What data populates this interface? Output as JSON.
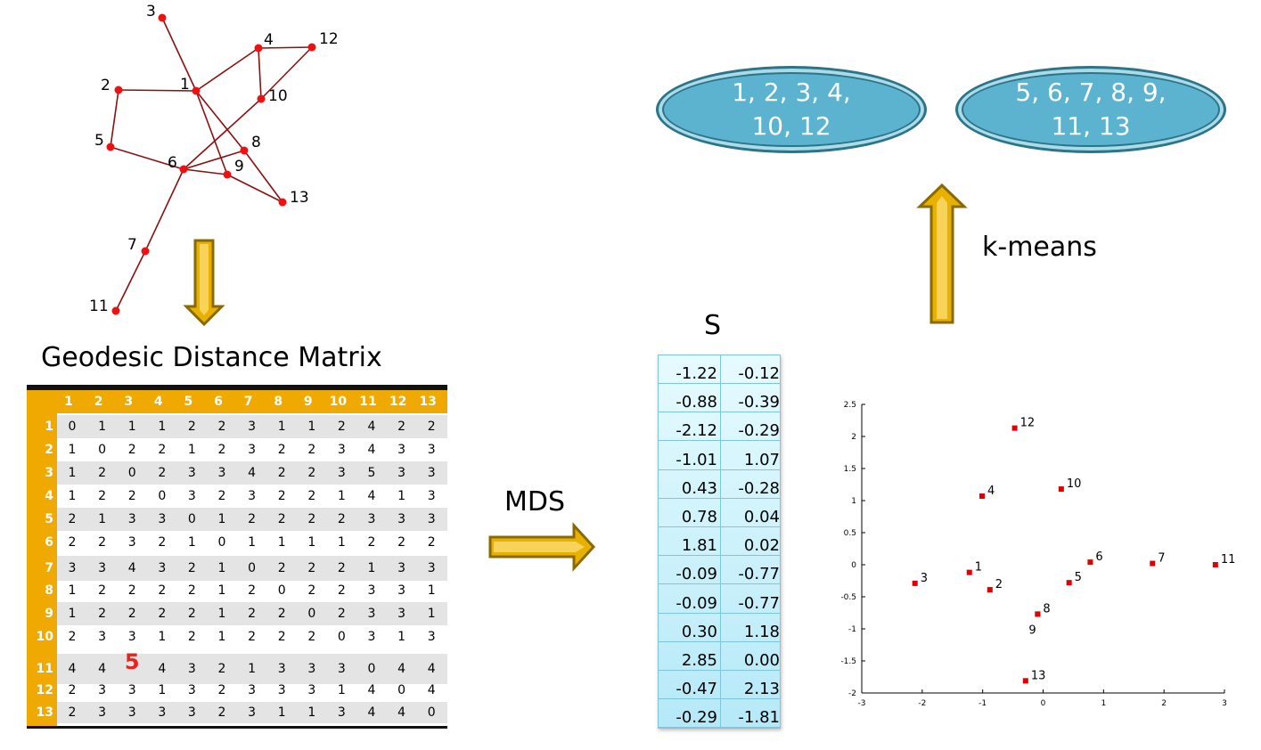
{
  "graph": {
    "nodes": [
      {
        "id": "1",
        "label": "1"
      },
      {
        "id": "2",
        "label": "2"
      },
      {
        "id": "3",
        "label": "3"
      },
      {
        "id": "4",
        "label": "4"
      },
      {
        "id": "5",
        "label": "5"
      },
      {
        "id": "6",
        "label": "6"
      },
      {
        "id": "7",
        "label": "7"
      },
      {
        "id": "8",
        "label": "8"
      },
      {
        "id": "9",
        "label": "9"
      },
      {
        "id": "10",
        "label": "10"
      },
      {
        "id": "11",
        "label": "11"
      },
      {
        "id": "12",
        "label": "12"
      },
      {
        "id": "13",
        "label": "13"
      }
    ],
    "edges": [
      [
        "3",
        "1"
      ],
      [
        "1",
        "2"
      ],
      [
        "1",
        "4"
      ],
      [
        "1",
        "9"
      ],
      [
        "1",
        "8"
      ],
      [
        "4",
        "12"
      ],
      [
        "4",
        "10"
      ],
      [
        "12",
        "10"
      ],
      [
        "2",
        "5"
      ],
      [
        "5",
        "6"
      ],
      [
        "6",
        "10"
      ],
      [
        "6",
        "8"
      ],
      [
        "6",
        "9"
      ],
      [
        "9",
        "13"
      ],
      [
        "8",
        "13"
      ],
      [
        "6",
        "7"
      ],
      [
        "7",
        "11"
      ]
    ],
    "edge_color": "#8b1010",
    "node_color": "#ee1111"
  },
  "matrix": {
    "title": "Geodesic Distance Matrix",
    "headers": [
      "1",
      "2",
      "3",
      "4",
      "5",
      "6",
      "7",
      "8",
      "9",
      "10",
      "11",
      "12",
      "13"
    ],
    "rows": [
      [
        0,
        1,
        1,
        1,
        2,
        2,
        3,
        1,
        1,
        2,
        4,
        2,
        2
      ],
      [
        1,
        0,
        2,
        2,
        1,
        2,
        3,
        2,
        2,
        3,
        4,
        3,
        3
      ],
      [
        1,
        2,
        0,
        2,
        3,
        3,
        4,
        2,
        2,
        3,
        5,
        3,
        3
      ],
      [
        1,
        2,
        2,
        0,
        3,
        2,
        3,
        2,
        2,
        1,
        4,
        1,
        3
      ],
      [
        2,
        1,
        3,
        3,
        0,
        1,
        2,
        2,
        2,
        2,
        3,
        3,
        3
      ],
      [
        2,
        2,
        3,
        2,
        1,
        0,
        1,
        1,
        1,
        1,
        2,
        2,
        2
      ],
      [
        3,
        3,
        4,
        3,
        2,
        1,
        0,
        2,
        2,
        2,
        1,
        3,
        3
      ],
      [
        1,
        2,
        2,
        2,
        2,
        1,
        2,
        0,
        2,
        2,
        3,
        3,
        1
      ],
      [
        1,
        2,
        2,
        2,
        2,
        1,
        2,
        2,
        0,
        2,
        3,
        3,
        1
      ],
      [
        2,
        3,
        3,
        1,
        2,
        1,
        2,
        2,
        2,
        0,
        3,
        1,
        3
      ],
      [
        4,
        4,
        5,
        4,
        3,
        2,
        1,
        3,
        3,
        3,
        0,
        4,
        4
      ],
      [
        2,
        3,
        3,
        1,
        3,
        2,
        3,
        3,
        3,
        1,
        4,
        0,
        4
      ],
      [
        2,
        3,
        3,
        3,
        3,
        2,
        3,
        1,
        1,
        3,
        4,
        4,
        0
      ]
    ],
    "highlight": {
      "row": 10,
      "col": 2
    },
    "header_color": "#f0a900",
    "highlight_color": "#e8231d"
  },
  "mds": {
    "label": "MDS"
  },
  "kmeans": {
    "label": "k-means"
  },
  "s_matrix": {
    "title": "S",
    "rows": [
      [
        "-1.22",
        "-0.12"
      ],
      [
        "-0.88",
        "-0.39"
      ],
      [
        "-2.12",
        "-0.29"
      ],
      [
        "-1.01",
        "1.07"
      ],
      [
        "0.43",
        "-0.28"
      ],
      [
        "0.78",
        "0.04"
      ],
      [
        "1.81",
        "0.02"
      ],
      [
        "-0.09",
        "-0.77"
      ],
      [
        "-0.09",
        "-0.77"
      ],
      [
        "0.30",
        "1.18"
      ],
      [
        "2.85",
        "0.00"
      ],
      [
        "-0.47",
        "2.13"
      ],
      [
        "-0.29",
        "-1.81"
      ]
    ]
  },
  "clusters": [
    {
      "line1": "1, 2, 3, 4,",
      "line2": "10, 12"
    },
    {
      "line1": "5, 6, 7, 8, 9,",
      "line2": "11, 13"
    }
  ],
  "chart_data": {
    "type": "scatter",
    "xlim": [
      -3,
      3
    ],
    "ylim": [
      -2,
      2.5
    ],
    "xticks": [
      "-3",
      "-2",
      "-1",
      "0",
      "1",
      "2",
      "3"
    ],
    "yticks": [
      "2.5",
      "2",
      "1.5",
      "1",
      "0.5",
      "0",
      "-0.5",
      "-1",
      "-1.5",
      "-2"
    ],
    "marker_color": "#e00000",
    "points": [
      {
        "label": "1",
        "x": -1.22,
        "y": -0.12
      },
      {
        "label": "2",
        "x": -0.88,
        "y": -0.39
      },
      {
        "label": "3",
        "x": -2.12,
        "y": -0.29
      },
      {
        "label": "4",
        "x": -1.01,
        "y": 1.07
      },
      {
        "label": "5",
        "x": 0.43,
        "y": -0.28
      },
      {
        "label": "6",
        "x": 0.78,
        "y": 0.04
      },
      {
        "label": "7",
        "x": 1.81,
        "y": 0.02
      },
      {
        "label": "8",
        "x": -0.09,
        "y": -0.77
      },
      {
        "label": "9",
        "x": -0.09,
        "y": -0.77
      },
      {
        "label": "10",
        "x": 0.3,
        "y": 1.18
      },
      {
        "label": "11",
        "x": 2.85,
        "y": 0.0
      },
      {
        "label": "12",
        "x": -0.47,
        "y": 2.13
      },
      {
        "label": "13",
        "x": -0.29,
        "y": -1.81
      }
    ]
  }
}
